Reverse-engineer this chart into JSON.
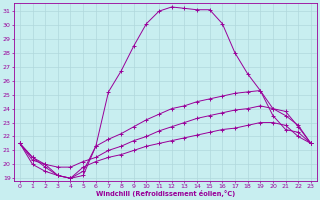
{
  "xlabel": "Windchill (Refroidissement éolien,°C)",
  "background_color": "#c8eef0",
  "line_color": "#990099",
  "grid_color": "#b0d8dc",
  "ylim": [
    18.8,
    31.6
  ],
  "xlim": [
    -0.5,
    23.5
  ],
  "yticks": [
    19,
    20,
    21,
    22,
    23,
    24,
    25,
    26,
    27,
    28,
    29,
    30,
    31
  ],
  "xticks": [
    0,
    1,
    2,
    3,
    4,
    5,
    6,
    7,
    8,
    9,
    10,
    11,
    12,
    13,
    14,
    15,
    16,
    17,
    18,
    19,
    20,
    21,
    22,
    23
  ],
  "lines": [
    {
      "x": [
        0,
        1,
        2,
        3,
        4,
        5,
        6,
        7,
        8,
        9,
        10,
        11,
        12,
        13,
        14,
        15,
        16,
        17,
        18,
        19,
        20,
        21,
        22,
        23
      ],
      "y": [
        21.5,
        20.5,
        19.8,
        19.2,
        19.0,
        19.2,
        21.3,
        25.2,
        26.7,
        28.5,
        30.1,
        31.0,
        31.3,
        31.2,
        31.1,
        31.1,
        30.1,
        28.0,
        26.5,
        25.3,
        23.5,
        22.5,
        22.3,
        21.5
      ]
    },
    {
      "x": [
        0,
        1,
        2,
        3,
        4,
        5,
        6,
        7,
        8,
        9,
        10,
        11,
        12,
        13,
        14,
        15,
        16,
        17,
        18,
        19,
        20,
        21,
        22,
        23
      ],
      "y": [
        21.5,
        20.5,
        20.0,
        19.2,
        19.0,
        19.5,
        21.3,
        21.8,
        22.2,
        22.7,
        23.2,
        23.6,
        24.0,
        24.2,
        24.5,
        24.7,
        24.9,
        25.1,
        25.2,
        25.3,
        24.0,
        23.5,
        22.8,
        21.5
      ]
    },
    {
      "x": [
        0,
        1,
        2,
        3,
        4,
        5,
        6,
        7,
        8,
        9,
        10,
        11,
        12,
        13,
        14,
        15,
        16,
        17,
        18,
        19,
        20,
        21,
        22,
        23
      ],
      "y": [
        21.5,
        20.3,
        20.0,
        19.8,
        19.8,
        20.2,
        20.5,
        21.0,
        21.3,
        21.7,
        22.0,
        22.4,
        22.7,
        23.0,
        23.3,
        23.5,
        23.7,
        23.9,
        24.0,
        24.2,
        24.0,
        23.8,
        22.7,
        21.5
      ]
    },
    {
      "x": [
        0,
        1,
        2,
        3,
        4,
        5,
        6,
        7,
        8,
        9,
        10,
        11,
        12,
        13,
        14,
        15,
        16,
        17,
        18,
        19,
        20,
        21,
        22,
        23
      ],
      "y": [
        21.5,
        20.0,
        19.5,
        19.2,
        19.0,
        19.8,
        20.2,
        20.5,
        20.7,
        21.0,
        21.3,
        21.5,
        21.7,
        21.9,
        22.1,
        22.3,
        22.5,
        22.6,
        22.8,
        23.0,
        23.0,
        22.8,
        22.0,
        21.5
      ]
    }
  ]
}
